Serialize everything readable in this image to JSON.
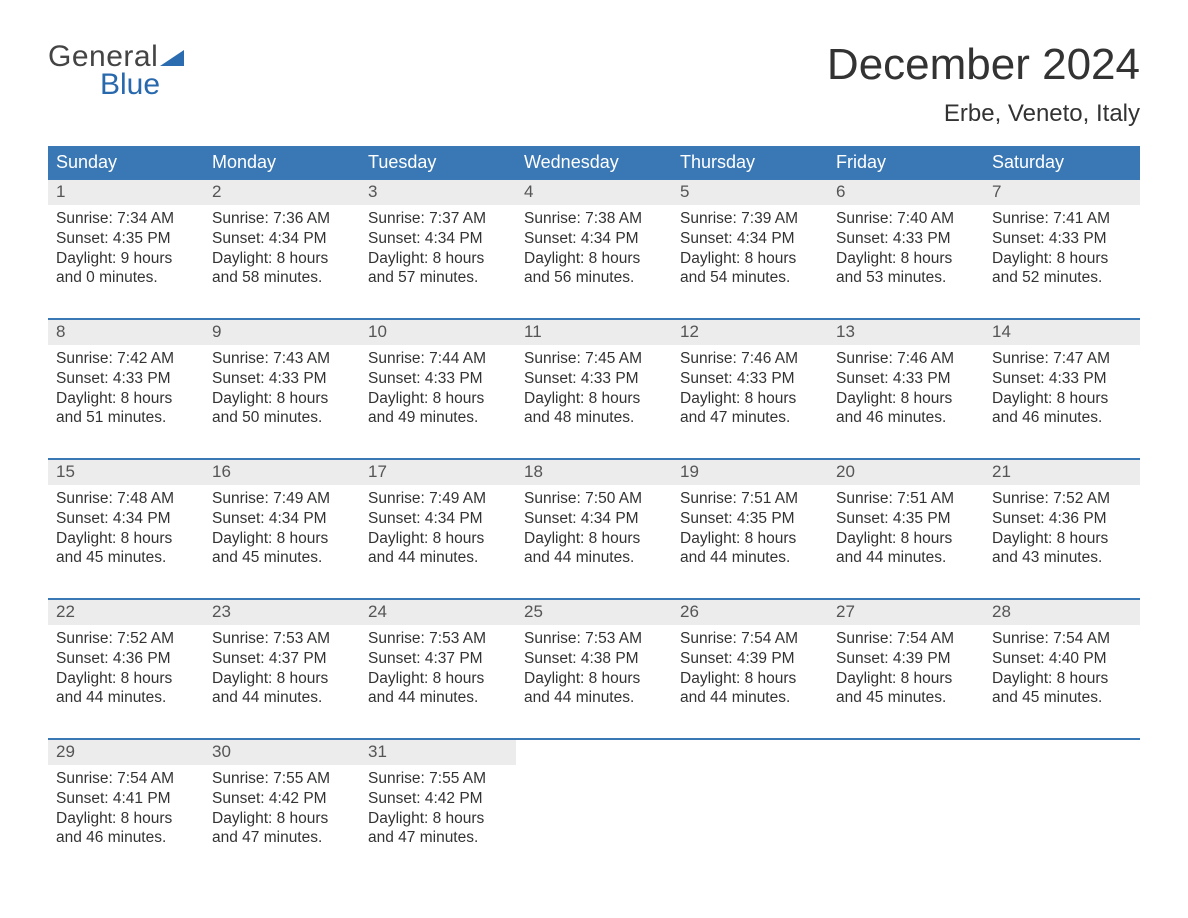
{
  "logo": {
    "line1": "General",
    "line2": "Blue"
  },
  "header": {
    "title": "December 2024",
    "location": "Erbe, Veneto, Italy"
  },
  "colors": {
    "header_bg": "#3a78b5",
    "header_text": "#ffffff",
    "daynum_bg": "#ececec",
    "week_divider": "#3a78b5",
    "body_text": "#333333",
    "logo_blue": "#2868ad"
  },
  "typography": {
    "title_fontsize": 44,
    "location_fontsize": 24,
    "weekday_fontsize": 18,
    "daynum_fontsize": 17,
    "body_fontsize": 15.5
  },
  "weekdays": [
    "Sunday",
    "Monday",
    "Tuesday",
    "Wednesday",
    "Thursday",
    "Friday",
    "Saturday"
  ],
  "days": [
    {
      "num": 1,
      "sunrise": "7:34 AM",
      "sunset": "4:35 PM",
      "daylight": "9 hours and 0 minutes."
    },
    {
      "num": 2,
      "sunrise": "7:36 AM",
      "sunset": "4:34 PM",
      "daylight": "8 hours and 58 minutes."
    },
    {
      "num": 3,
      "sunrise": "7:37 AM",
      "sunset": "4:34 PM",
      "daylight": "8 hours and 57 minutes."
    },
    {
      "num": 4,
      "sunrise": "7:38 AM",
      "sunset": "4:34 PM",
      "daylight": "8 hours and 56 minutes."
    },
    {
      "num": 5,
      "sunrise": "7:39 AM",
      "sunset": "4:34 PM",
      "daylight": "8 hours and 54 minutes."
    },
    {
      "num": 6,
      "sunrise": "7:40 AM",
      "sunset": "4:33 PM",
      "daylight": "8 hours and 53 minutes."
    },
    {
      "num": 7,
      "sunrise": "7:41 AM",
      "sunset": "4:33 PM",
      "daylight": "8 hours and 52 minutes."
    },
    {
      "num": 8,
      "sunrise": "7:42 AM",
      "sunset": "4:33 PM",
      "daylight": "8 hours and 51 minutes."
    },
    {
      "num": 9,
      "sunrise": "7:43 AM",
      "sunset": "4:33 PM",
      "daylight": "8 hours and 50 minutes."
    },
    {
      "num": 10,
      "sunrise": "7:44 AM",
      "sunset": "4:33 PM",
      "daylight": "8 hours and 49 minutes."
    },
    {
      "num": 11,
      "sunrise": "7:45 AM",
      "sunset": "4:33 PM",
      "daylight": "8 hours and 48 minutes."
    },
    {
      "num": 12,
      "sunrise": "7:46 AM",
      "sunset": "4:33 PM",
      "daylight": "8 hours and 47 minutes."
    },
    {
      "num": 13,
      "sunrise": "7:46 AM",
      "sunset": "4:33 PM",
      "daylight": "8 hours and 46 minutes."
    },
    {
      "num": 14,
      "sunrise": "7:47 AM",
      "sunset": "4:33 PM",
      "daylight": "8 hours and 46 minutes."
    },
    {
      "num": 15,
      "sunrise": "7:48 AM",
      "sunset": "4:34 PM",
      "daylight": "8 hours and 45 minutes."
    },
    {
      "num": 16,
      "sunrise": "7:49 AM",
      "sunset": "4:34 PM",
      "daylight": "8 hours and 45 minutes."
    },
    {
      "num": 17,
      "sunrise": "7:49 AM",
      "sunset": "4:34 PM",
      "daylight": "8 hours and 44 minutes."
    },
    {
      "num": 18,
      "sunrise": "7:50 AM",
      "sunset": "4:34 PM",
      "daylight": "8 hours and 44 minutes."
    },
    {
      "num": 19,
      "sunrise": "7:51 AM",
      "sunset": "4:35 PM",
      "daylight": "8 hours and 44 minutes."
    },
    {
      "num": 20,
      "sunrise": "7:51 AM",
      "sunset": "4:35 PM",
      "daylight": "8 hours and 44 minutes."
    },
    {
      "num": 21,
      "sunrise": "7:52 AM",
      "sunset": "4:36 PM",
      "daylight": "8 hours and 43 minutes."
    },
    {
      "num": 22,
      "sunrise": "7:52 AM",
      "sunset": "4:36 PM",
      "daylight": "8 hours and 44 minutes."
    },
    {
      "num": 23,
      "sunrise": "7:53 AM",
      "sunset": "4:37 PM",
      "daylight": "8 hours and 44 minutes."
    },
    {
      "num": 24,
      "sunrise": "7:53 AM",
      "sunset": "4:37 PM",
      "daylight": "8 hours and 44 minutes."
    },
    {
      "num": 25,
      "sunrise": "7:53 AM",
      "sunset": "4:38 PM",
      "daylight": "8 hours and 44 minutes."
    },
    {
      "num": 26,
      "sunrise": "7:54 AM",
      "sunset": "4:39 PM",
      "daylight": "8 hours and 44 minutes."
    },
    {
      "num": 27,
      "sunrise": "7:54 AM",
      "sunset": "4:39 PM",
      "daylight": "8 hours and 45 minutes."
    },
    {
      "num": 28,
      "sunrise": "7:54 AM",
      "sunset": "4:40 PM",
      "daylight": "8 hours and 45 minutes."
    },
    {
      "num": 29,
      "sunrise": "7:54 AM",
      "sunset": "4:41 PM",
      "daylight": "8 hours and 46 minutes."
    },
    {
      "num": 30,
      "sunrise": "7:55 AM",
      "sunset": "4:42 PM",
      "daylight": "8 hours and 47 minutes."
    },
    {
      "num": 31,
      "sunrise": "7:55 AM",
      "sunset": "4:42 PM",
      "daylight": "8 hours and 47 minutes."
    }
  ],
  "labels": {
    "sunrise_prefix": "Sunrise: ",
    "sunset_prefix": "Sunset: ",
    "daylight_prefix": "Daylight: "
  },
  "layout": {
    "first_weekday_index": 0,
    "trailing_blanks": 4
  }
}
